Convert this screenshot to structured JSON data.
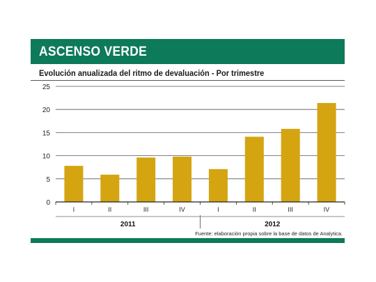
{
  "header": {
    "title": "ASCENSO VERDE"
  },
  "subtitle": "Evolución anualizada del ritmo de devaluación - Por trimestre",
  "source": "Fuente: elaboración propia sobre la base de datos de Analytica.",
  "colors": {
    "brand": "#0d7a5a",
    "bar": "#d4a411",
    "grid": "#555555"
  },
  "chart_data": {
    "type": "bar",
    "categories": [
      "I",
      "II",
      "III",
      "IV",
      "I",
      "II",
      "III",
      "IV"
    ],
    "groups": [
      {
        "label": "2011",
        "categories": [
          "I",
          "II",
          "III",
          "IV"
        ]
      },
      {
        "label": "2012",
        "categories": [
          "I",
          "II",
          "III",
          "IV"
        ]
      }
    ],
    "values": [
      7.8,
      5.9,
      9.6,
      9.8,
      7.1,
      14.1,
      15.8,
      21.4
    ],
    "ylim": [
      0,
      25
    ],
    "yticks": [
      0,
      5,
      10,
      15,
      20,
      25
    ],
    "grid": true
  }
}
